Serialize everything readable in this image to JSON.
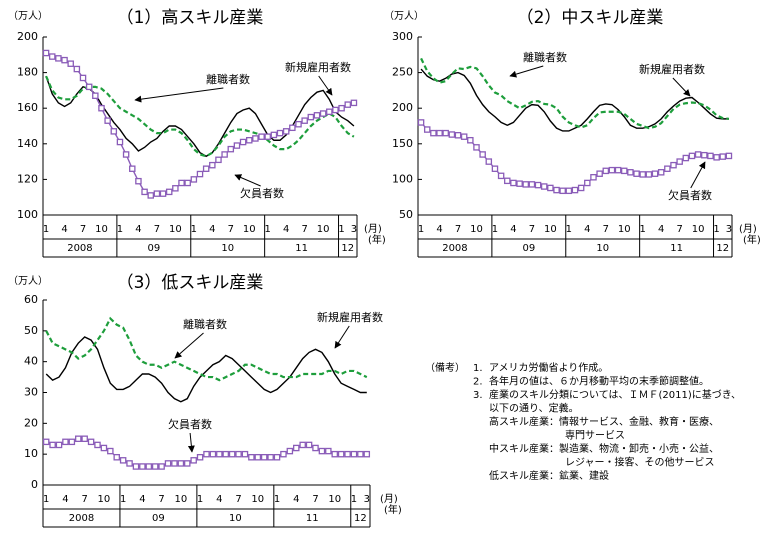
{
  "chart_data": [
    {
      "type": "line",
      "title": "（1）高スキル産業",
      "y_unit": "（万人）",
      "x_unit": "(月)",
      "year_unit": "(年)",
      "categories": [
        "1",
        null,
        null,
        "4",
        null,
        null,
        "7",
        null,
        null,
        "10",
        null,
        null,
        "1",
        null,
        null,
        "4",
        null,
        null,
        "7",
        null,
        null,
        "10",
        null,
        null,
        "1",
        null,
        null,
        "4",
        null,
        null,
        "7",
        null,
        null,
        "10",
        null,
        null,
        "1",
        null,
        null,
        "4",
        null,
        null,
        "7",
        null,
        null,
        "10",
        null,
        null,
        "1",
        null,
        "3"
      ],
      "years": [
        "2008",
        "09",
        "10",
        "11",
        "12"
      ],
      "ylim": [
        100,
        200
      ],
      "yticks": [
        100,
        120,
        140,
        160,
        180,
        200
      ],
      "series": [
        {
          "name": "新規雇用者数",
          "color": "#000000",
          "line_style": "solid",
          "values": [
            178,
            168,
            163,
            161,
            163,
            168,
            172,
            171,
            168,
            162,
            157,
            152,
            148,
            143,
            140,
            136,
            138,
            141,
            143,
            147,
            150,
            150,
            148,
            144,
            140,
            135,
            133,
            135,
            140,
            146,
            152,
            157,
            159,
            160,
            157,
            151,
            145,
            142,
            142,
            145,
            150,
            156,
            162,
            166,
            169,
            170,
            165,
            158,
            155,
            153,
            150
          ]
        },
        {
          "name": "離職者数",
          "color": "#1e9e3c",
          "line_style": "dashed",
          "values": [
            178,
            170,
            166,
            165,
            165,
            167,
            171,
            172,
            172,
            171,
            168,
            164,
            160,
            158,
            156,
            154,
            151,
            148,
            146,
            146,
            148,
            148,
            146,
            142,
            137,
            134,
            133,
            135,
            139,
            144,
            147,
            148,
            148,
            147,
            146,
            145,
            142,
            139,
            137,
            137,
            139,
            142,
            146,
            150,
            153,
            155,
            157,
            155,
            150,
            146,
            144
          ]
        },
        {
          "name": "欠員者数",
          "color": "#8a5cb8",
          "line_style": "solid",
          "marker": "square",
          "values": [
            191,
            189,
            188,
            187,
            185,
            182,
            177,
            172,
            167,
            160,
            153,
            147,
            141,
            134,
            126,
            119,
            113,
            111,
            112,
            112,
            113,
            115,
            118,
            118,
            120,
            123,
            126,
            128,
            131,
            134,
            137,
            139,
            141,
            142,
            143,
            144,
            144,
            145,
            146,
            147,
            149,
            151,
            153,
            155,
            156,
            157,
            158,
            159,
            160,
            162,
            163
          ]
        }
      ]
    },
    {
      "type": "line",
      "title": "（2）中スキル産業",
      "y_unit": "（万人）",
      "x_unit": "(月)",
      "year_unit": "(年)",
      "categories": [
        "1",
        null,
        null,
        "4",
        null,
        null,
        "7",
        null,
        null,
        "10",
        null,
        null,
        "1",
        null,
        null,
        "4",
        null,
        null,
        "7",
        null,
        null,
        "10",
        null,
        null,
        "1",
        null,
        null,
        "4",
        null,
        null,
        "7",
        null,
        null,
        "10",
        null,
        null,
        "1",
        null,
        null,
        "4",
        null,
        null,
        "7",
        null,
        null,
        "10",
        null,
        null,
        "1",
        null,
        "3"
      ],
      "years": [
        "2008",
        "09",
        "10",
        "11",
        "12"
      ],
      "ylim": [
        50,
        300
      ],
      "yticks": [
        50,
        100,
        150,
        200,
        250,
        300
      ],
      "series": [
        {
          "name": "新規雇用者数",
          "color": "#000000",
          "line_style": "solid",
          "values": [
            255,
            245,
            240,
            238,
            242,
            248,
            250,
            246,
            235,
            218,
            205,
            195,
            188,
            180,
            176,
            180,
            190,
            200,
            205,
            204,
            195,
            182,
            172,
            168,
            168,
            172,
            176,
            185,
            195,
            204,
            206,
            205,
            198,
            188,
            176,
            172,
            172,
            174,
            178,
            185,
            195,
            203,
            210,
            214,
            215,
            208,
            200,
            192,
            186,
            185,
            185
          ]
        },
        {
          "name": "離職者数",
          "color": "#1e9e3c",
          "line_style": "dashed",
          "values": [
            270,
            252,
            242,
            236,
            238,
            248,
            256,
            255,
            258,
            256,
            245,
            232,
            222,
            218,
            210,
            205,
            200,
            204,
            209,
            210,
            206,
            205,
            200,
            188,
            180,
            176,
            173,
            176,
            186,
            194,
            195,
            195,
            195,
            192,
            185,
            178,
            175,
            172,
            174,
            179,
            189,
            199,
            205,
            207,
            208,
            207,
            204,
            198,
            190,
            186,
            185
          ]
        },
        {
          "name": "欠員者数",
          "color": "#8a5cb8",
          "line_style": "solid",
          "marker": "square",
          "values": [
            180,
            170,
            165,
            165,
            165,
            163,
            162,
            160,
            155,
            145,
            135,
            125,
            115,
            105,
            98,
            95,
            94,
            93,
            93,
            92,
            90,
            88,
            85,
            84,
            84,
            85,
            88,
            95,
            103,
            108,
            112,
            113,
            113,
            112,
            110,
            108,
            107,
            107,
            108,
            110,
            115,
            120,
            125,
            130,
            133,
            135,
            134,
            133,
            131,
            132,
            133
          ]
        }
      ]
    },
    {
      "type": "line",
      "title": "（3）低スキル産業",
      "y_unit": "（万人）",
      "x_unit": "(月)",
      "year_unit": "(年)",
      "categories": [
        "1",
        null,
        null,
        "4",
        null,
        null,
        "7",
        null,
        null,
        "10",
        null,
        null,
        "1",
        null,
        null,
        "4",
        null,
        null,
        "7",
        null,
        null,
        "10",
        null,
        null,
        "1",
        null,
        null,
        "4",
        null,
        null,
        "7",
        null,
        null,
        "10",
        null,
        null,
        "1",
        null,
        null,
        "4",
        null,
        null,
        "7",
        null,
        null,
        "10",
        null,
        null,
        "1",
        null,
        "3"
      ],
      "years": [
        "2008",
        "09",
        "10",
        "11",
        "12"
      ],
      "ylim": [
        0,
        60
      ],
      "yticks": [
        0,
        10,
        20,
        30,
        40,
        50,
        60
      ],
      "series": [
        {
          "name": "新規雇用者数",
          "color": "#000000",
          "line_style": "solid",
          "values": [
            36,
            34,
            35,
            38,
            43,
            46,
            48,
            47,
            44,
            38,
            33,
            31,
            31,
            32,
            34,
            36,
            36,
            35,
            33,
            30,
            28,
            27,
            28,
            32,
            35,
            37,
            39,
            40,
            42,
            41,
            39,
            37,
            35,
            33,
            31,
            30,
            31,
            33,
            35,
            38,
            41,
            43,
            44,
            43,
            40,
            36,
            33,
            32,
            31,
            30,
            30
          ]
        },
        {
          "name": "離職者数",
          "color": "#1e9e3c",
          "line_style": "dashed",
          "values": [
            50,
            46,
            45,
            44,
            43,
            41,
            42,
            44,
            47,
            50,
            54,
            52,
            51,
            47,
            42,
            40,
            39,
            39,
            38,
            39,
            40,
            39,
            38,
            37,
            36,
            35,
            35,
            34,
            35,
            36,
            37,
            39,
            39,
            38,
            37,
            36,
            36,
            35,
            35,
            35,
            36,
            36,
            36,
            36,
            37,
            37,
            36,
            37,
            37,
            36,
            35
          ]
        },
        {
          "name": "欠員者数",
          "color": "#8a5cb8",
          "line_style": "solid",
          "marker": "square",
          "values": [
            14,
            13,
            13,
            14,
            14,
            15,
            15,
            14,
            13,
            12,
            11,
            9,
            8,
            7,
            6,
            6,
            6,
            6,
            6,
            7,
            7,
            7,
            7,
            8,
            9,
            10,
            10,
            10,
            10,
            10,
            10,
            10,
            9,
            9,
            9,
            9,
            9,
            10,
            11,
            12,
            13,
            13,
            12,
            11,
            11,
            10,
            10,
            10,
            10,
            10,
            10
          ]
        }
      ]
    }
  ],
  "notes": {
    "label": "（備考）",
    "items": [
      {
        "num": "1.",
        "lines": [
          "アメリカ労働省より作成。"
        ]
      },
      {
        "num": "2.",
        "lines": [
          "各年月の値は、６か月移動平均の末季節調整値。"
        ]
      },
      {
        "num": "3.",
        "lines": [
          "産業のスキル分類については、ＩＭＦ(2011)に基づき、",
          "以下の通り、定義。"
        ]
      }
    ],
    "definitions": [
      {
        "term": "高スキル産業",
        "lines": [
          "：情報サービス、金融、教育・医療、",
          "専門サービス"
        ]
      },
      {
        "term": "中スキル産業",
        "lines": [
          "：製造業、物流・卸売・小売・公益、",
          "レジャー・接客、その他サービス"
        ]
      },
      {
        "term": "低スキル産業",
        "lines": [
          "：鉱業、建設"
        ]
      }
    ]
  }
}
